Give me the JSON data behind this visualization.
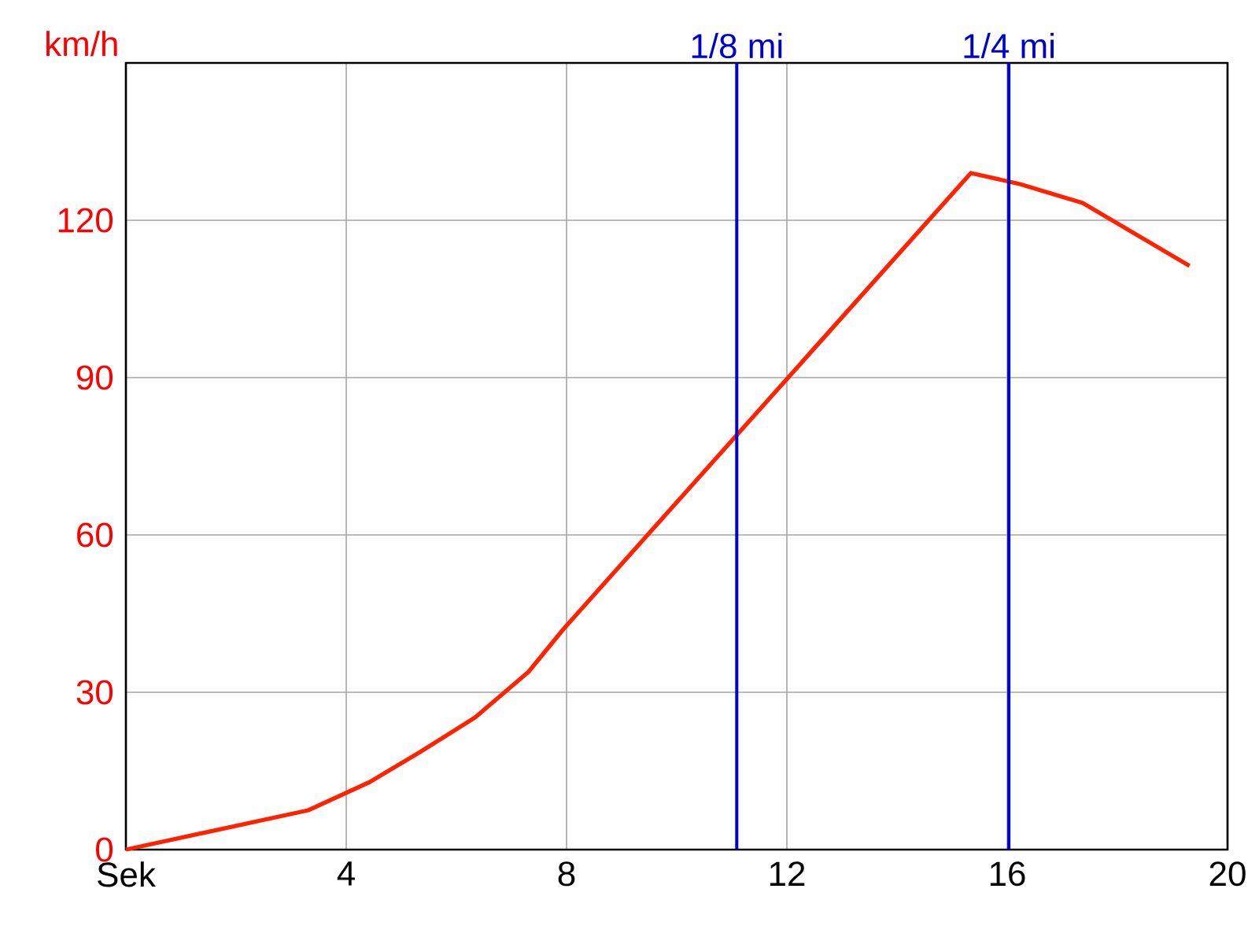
{
  "chart_data": {
    "type": "line",
    "xlabel": null,
    "ylabel": "km/h",
    "x": [
      0,
      3.31,
      4.43,
      5.34,
      6.34,
      7.31,
      7.94,
      15.34,
      16.23,
      17.37,
      19.31
    ],
    "values": [
      0,
      7.5,
      12.9,
      18.6,
      25.2,
      33.9,
      42,
      129,
      126.9,
      123.3,
      111.3
    ],
    "color": "#ff2200",
    "xlim": [
      0,
      20
    ],
    "ylim": [
      0,
      150
    ],
    "xticks": [
      {
        "value": 0,
        "label": "Sek"
      },
      4,
      8,
      12,
      16,
      20
    ],
    "yticks": [
      0,
      30,
      60,
      90,
      120
    ],
    "grid": true,
    "ref_lines": [
      {
        "axis": "x",
        "value": 11.09,
        "label": "1/8 mi",
        "color": "#0000cc"
      },
      {
        "axis": "x",
        "value": 16.03,
        "label": "1/4 mi",
        "color": "#0000cc"
      }
    ]
  }
}
